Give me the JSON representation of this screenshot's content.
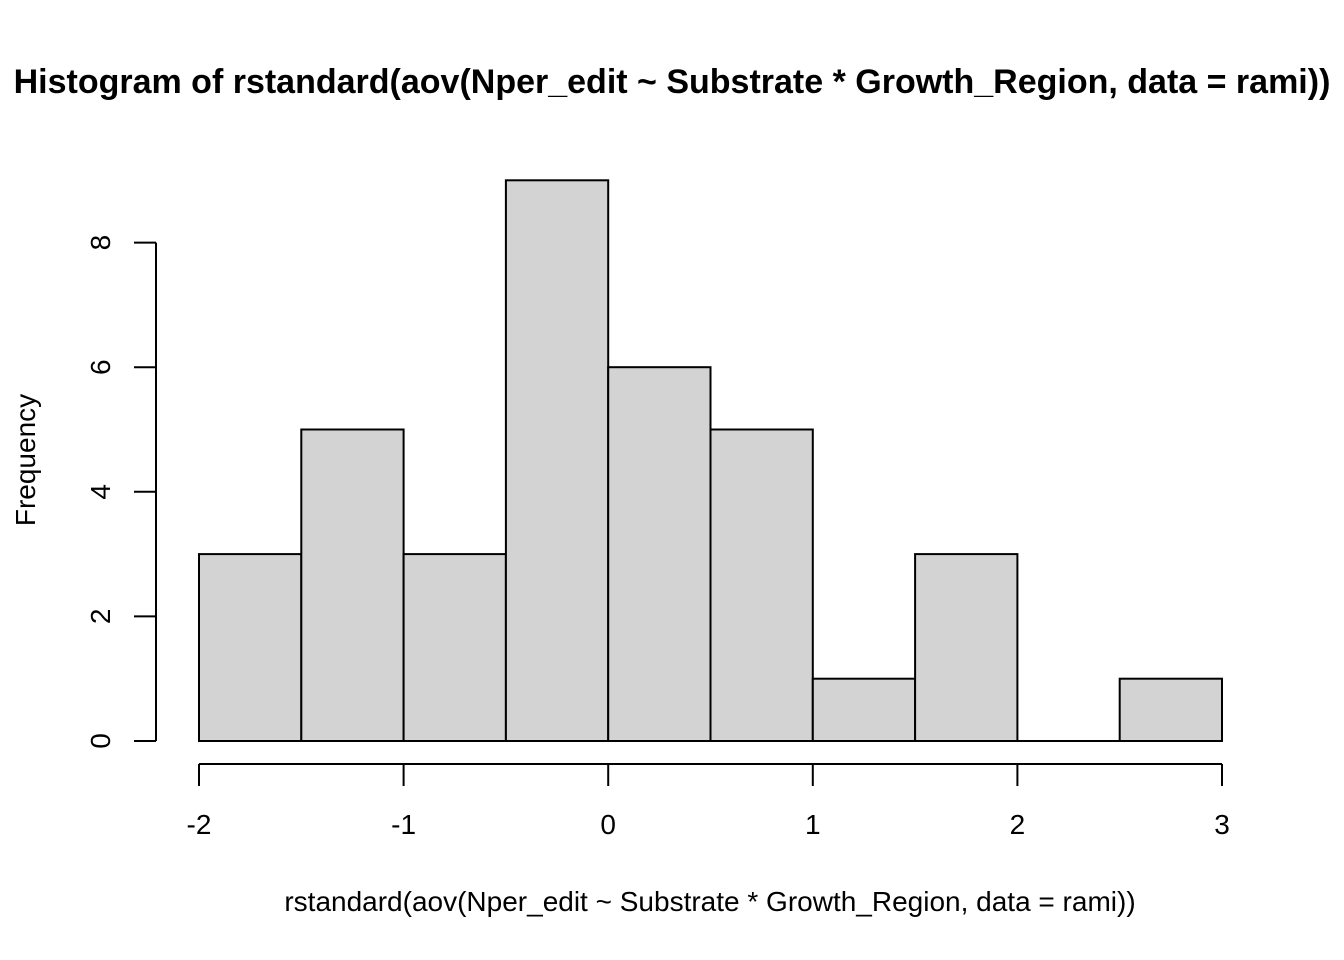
{
  "chart_data": {
    "type": "bar",
    "subtype": "histogram",
    "title": "Histogram of rstandard(aov(Nper_edit ~ Substrate * Growth_Region, data = rami))",
    "xlabel": "rstandard(aov(Nper_edit ~ Substrate * Growth_Region, data = rami))",
    "ylabel": "Frequency",
    "bins": [
      {
        "start": -2.0,
        "end": -1.5,
        "count": 3
      },
      {
        "start": -1.5,
        "end": -1.0,
        "count": 5
      },
      {
        "start": -1.0,
        "end": -0.5,
        "count": 3
      },
      {
        "start": -0.5,
        "end": 0.0,
        "count": 9
      },
      {
        "start": 0.0,
        "end": 0.5,
        "count": 6
      },
      {
        "start": 0.5,
        "end": 1.0,
        "count": 5
      },
      {
        "start": 1.0,
        "end": 1.5,
        "count": 1
      },
      {
        "start": 1.5,
        "end": 2.0,
        "count": 3
      },
      {
        "start": 2.0,
        "end": 2.5,
        "count": 0
      },
      {
        "start": 2.5,
        "end": 3.0,
        "count": 1
      }
    ],
    "xlim": [
      -2,
      3
    ],
    "ylim": [
      0,
      9
    ],
    "xticks": [
      "-2",
      "-1",
      "0",
      "1",
      "2",
      "3"
    ],
    "yticks": [
      "0",
      "2",
      "4",
      "6",
      "8"
    ],
    "grid": false,
    "bar_fill": "#d3d3d3",
    "bar_stroke": "#000000"
  }
}
